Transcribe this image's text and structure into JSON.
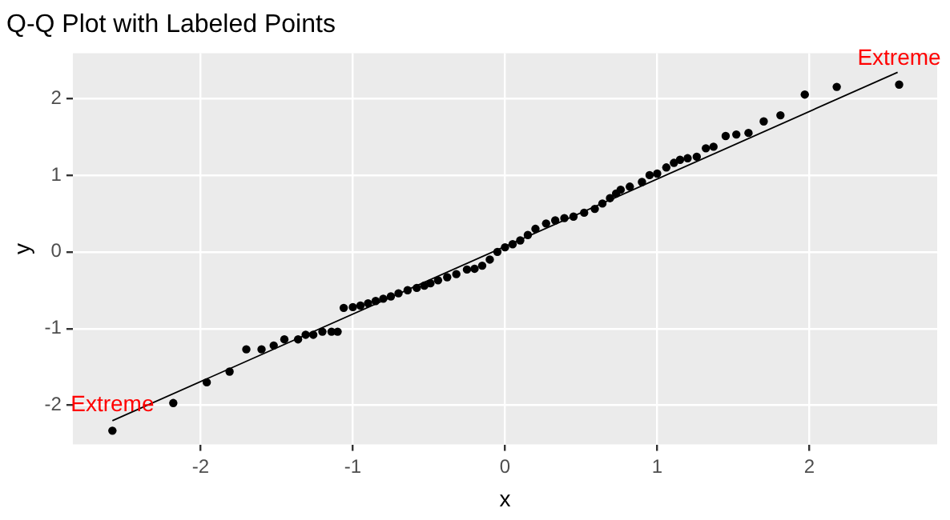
{
  "chart_data": {
    "type": "scatter",
    "title": "Q-Q Plot with Labeled Points",
    "xlabel": "x",
    "ylabel": "y",
    "xlim": [
      -2.84,
      2.84
    ],
    "xticks": [
      -2,
      -1,
      0,
      1,
      2
    ],
    "ylim": [
      -2.51,
      2.59
    ],
    "yticks": [
      -2,
      -1,
      0,
      1,
      2
    ],
    "grid": true,
    "legend": false,
    "series": [
      {
        "color": "#000000",
        "marker": "circle",
        "x": [
          -2.58,
          -2.18,
          -1.96,
          -1.81,
          -1.7,
          -1.6,
          -1.52,
          -1.45,
          -1.36,
          -1.31,
          -1.26,
          -1.2,
          -1.14,
          -1.1,
          -1.06,
          -1.0,
          -0.95,
          -0.9,
          -0.85,
          -0.8,
          -0.75,
          -0.7,
          -0.64,
          -0.58,
          -0.53,
          -0.49,
          -0.44,
          -0.38,
          -0.32,
          -0.25,
          -0.2,
          -0.15,
          -0.1,
          -0.05,
          0.0,
          0.05,
          0.1,
          0.15,
          0.2,
          0.27,
          0.33,
          0.39,
          0.45,
          0.52,
          0.59,
          0.64,
          0.69,
          0.73,
          0.76,
          0.82,
          0.9,
          0.95,
          1.0,
          1.06,
          1.11,
          1.15,
          1.2,
          1.26,
          1.32,
          1.37,
          1.45,
          1.52,
          1.6,
          1.7,
          1.81,
          1.97,
          2.18,
          2.59
        ],
        "values": [
          -2.33,
          -1.97,
          -1.7,
          -1.56,
          -1.27,
          -1.27,
          -1.22,
          -1.14,
          -1.14,
          -1.08,
          -1.08,
          -1.04,
          -1.04,
          -1.04,
          -0.73,
          -0.72,
          -0.7,
          -0.67,
          -0.64,
          -0.61,
          -0.58,
          -0.54,
          -0.5,
          -0.47,
          -0.44,
          -0.41,
          -0.37,
          -0.33,
          -0.29,
          -0.23,
          -0.22,
          -0.18,
          -0.1,
          0.0,
          0.06,
          0.1,
          0.15,
          0.22,
          0.3,
          0.37,
          0.41,
          0.44,
          0.46,
          0.51,
          0.56,
          0.63,
          0.7,
          0.76,
          0.81,
          0.85,
          0.91,
          1.0,
          1.02,
          1.1,
          1.16,
          1.2,
          1.22,
          1.24,
          1.35,
          1.37,
          1.51,
          1.53,
          1.55,
          1.7,
          1.78,
          2.05,
          2.15,
          2.18
        ]
      },
      {
        "type": "line",
        "marker": "none",
        "color": "#000000",
        "x": [
          -2.58,
          2.58
        ],
        "values": [
          -2.2,
          2.34
        ]
      }
    ],
    "annotations": [
      {
        "text": "Extreme",
        "x": -2.58,
        "y": -2.33
      },
      {
        "text": "Extreme",
        "x": 2.59,
        "y": 2.18
      }
    ]
  }
}
